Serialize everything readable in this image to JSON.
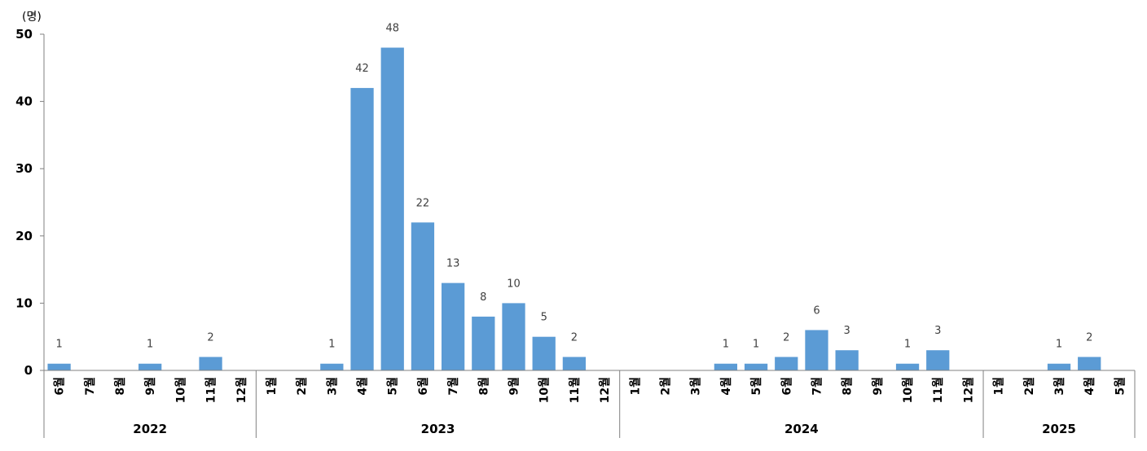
{
  "chart_data": {
    "type": "bar",
    "unit_label": "(명)",
    "ylim": [
      0,
      50
    ],
    "yticks": [
      0,
      10,
      20,
      30,
      40,
      50
    ],
    "bar_color": "#5b9bd5",
    "show_data_labels_for_nonzero": true,
    "groups": [
      {
        "year": "2022",
        "months": [
          "6월",
          "7월",
          "8월",
          "9월",
          "10월",
          "11월",
          "12월"
        ],
        "values": [
          1,
          0,
          0,
          1,
          0,
          2,
          0
        ]
      },
      {
        "year": "2023",
        "months": [
          "1월",
          "2월",
          "3월",
          "4월",
          "5월",
          "6월",
          "7월",
          "8월",
          "9월",
          "10월",
          "11월",
          "12월"
        ],
        "values": [
          0,
          0,
          1,
          42,
          48,
          22,
          13,
          8,
          10,
          5,
          2,
          0
        ]
      },
      {
        "year": "2024",
        "months": [
          "1월",
          "2월",
          "3월",
          "4월",
          "5월",
          "6월",
          "7월",
          "8월",
          "9월",
          "10월",
          "11월",
          "12월"
        ],
        "values": [
          0,
          0,
          0,
          1,
          1,
          2,
          6,
          3,
          0,
          1,
          3,
          0
        ]
      },
      {
        "year": "2025",
        "months": [
          "1월",
          "2월",
          "3월",
          "4월",
          "5월"
        ],
        "values": [
          0,
          0,
          1,
          2,
          0
        ]
      }
    ]
  }
}
